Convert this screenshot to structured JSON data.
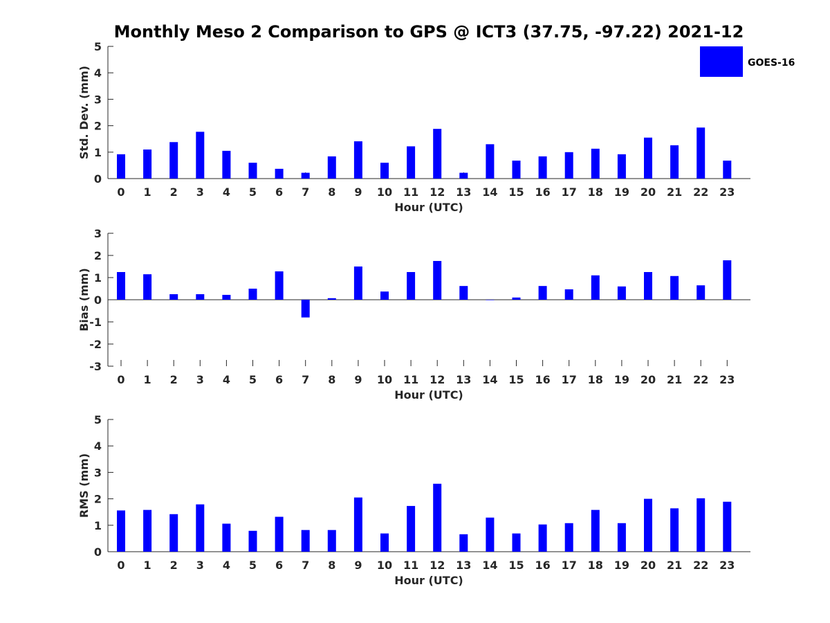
{
  "title": "Monthly Meso 2 Comparison to GPS @ ICT3 (37.75, -97.22) 2021-12",
  "legend": {
    "label": "GOES-16",
    "color": "#0000ff"
  },
  "colors": {
    "bar": "#0000ff",
    "axis": "#262626",
    "title": "#000000"
  },
  "chart_data": [
    {
      "type": "bar",
      "title": "Monthly Meso 2 Comparison to GPS @ ICT3 (37.75, -97.22) 2021-12",
      "xlabel": "Hour (UTC)",
      "ylabel": "Std. Dev. (mm)",
      "ylim": [
        0,
        5
      ],
      "yticks": [
        "0",
        "1",
        "2",
        "3",
        "4",
        "5"
      ],
      "categories": [
        "0",
        "1",
        "2",
        "3",
        "4",
        "5",
        "6",
        "7",
        "8",
        "9",
        "10",
        "11",
        "12",
        "13",
        "14",
        "15",
        "16",
        "17",
        "18",
        "19",
        "20",
        "21",
        "22",
        "23"
      ],
      "series": [
        {
          "name": "GOES-16",
          "values": [
            0.92,
            1.1,
            1.38,
            1.77,
            1.05,
            0.6,
            0.37,
            0.22,
            0.84,
            1.41,
            0.6,
            1.22,
            1.88,
            0.22,
            1.3,
            0.68,
            0.84,
            1.0,
            1.13,
            0.92,
            1.55,
            1.26,
            1.93,
            0.68
          ]
        }
      ],
      "legend": "top-right",
      "grid": false
    },
    {
      "type": "bar",
      "xlabel": "Hour (UTC)",
      "ylabel": "Bias (mm)",
      "ylim": [
        -3,
        3
      ],
      "yticks": [
        "-3",
        "-2",
        "-1",
        "0",
        "1",
        "2",
        "3"
      ],
      "categories": [
        "0",
        "1",
        "2",
        "3",
        "4",
        "5",
        "6",
        "7",
        "8",
        "9",
        "10",
        "11",
        "12",
        "13",
        "14",
        "15",
        "16",
        "17",
        "18",
        "19",
        "20",
        "21",
        "22",
        "23"
      ],
      "series": [
        {
          "name": "GOES-16",
          "values": [
            1.25,
            1.15,
            0.25,
            0.25,
            0.22,
            0.5,
            1.28,
            -0.8,
            0.07,
            1.5,
            0.37,
            1.25,
            1.75,
            0.62,
            0.0,
            0.1,
            0.62,
            0.47,
            1.1,
            0.6,
            1.25,
            1.07,
            0.65,
            1.78
          ]
        }
      ],
      "grid": false
    },
    {
      "type": "bar",
      "xlabel": "Hour (UTC)",
      "ylabel": "RMS (mm)",
      "ylim": [
        0,
        5
      ],
      "yticks": [
        "0",
        "1",
        "2",
        "3",
        "4",
        "5"
      ],
      "categories": [
        "0",
        "1",
        "2",
        "3",
        "4",
        "5",
        "6",
        "7",
        "8",
        "9",
        "10",
        "11",
        "12",
        "13",
        "14",
        "15",
        "16",
        "17",
        "18",
        "19",
        "20",
        "21",
        "22",
        "23"
      ],
      "series": [
        {
          "name": "GOES-16",
          "values": [
            1.56,
            1.58,
            1.42,
            1.79,
            1.06,
            0.79,
            1.32,
            0.82,
            0.82,
            2.05,
            0.69,
            1.73,
            2.57,
            0.66,
            1.29,
            0.69,
            1.03,
            1.08,
            1.58,
            1.08,
            2.0,
            1.64,
            2.02,
            1.89
          ]
        }
      ],
      "grid": false
    }
  ]
}
